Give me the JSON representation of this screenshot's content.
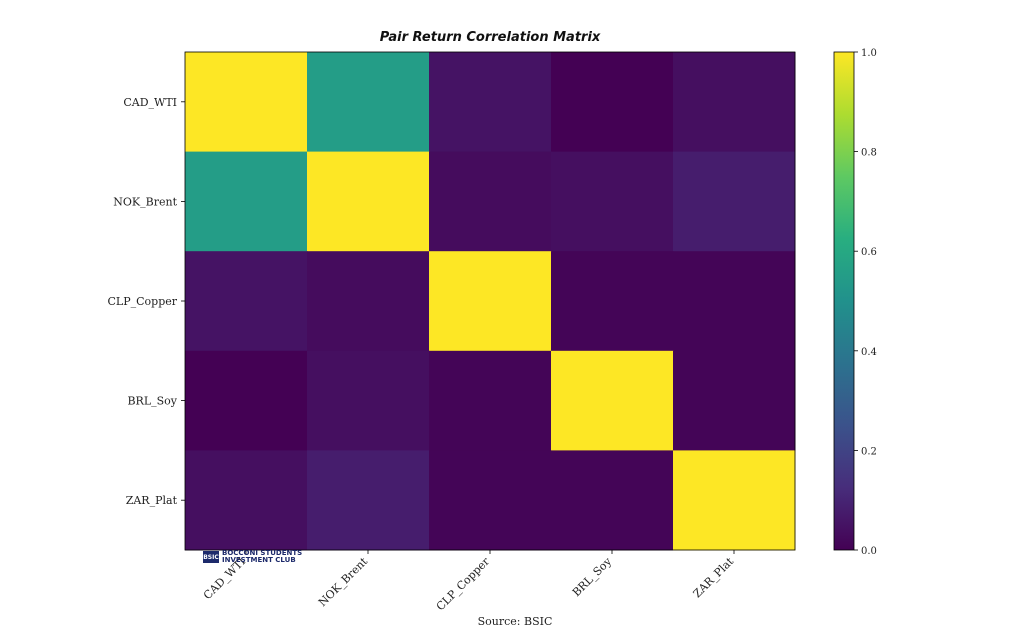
{
  "chart_data": {
    "type": "heatmap",
    "title": "Pair Return Correlation Matrix",
    "xlabel": "",
    "ylabel": "",
    "rows": [
      "CAD_WTI",
      "NOK_Brent",
      "CLP_Copper",
      "BRL_Soy",
      "ZAR_Plat"
    ],
    "columns": [
      "CAD_WTI",
      "NOK_Brent",
      "CLP_Copper",
      "BRL_Soy",
      "ZAR_Plat"
    ],
    "values": [
      [
        1.0,
        0.55,
        0.05,
        0.0,
        0.04
      ],
      [
        0.55,
        1.0,
        0.03,
        0.04,
        0.08
      ],
      [
        0.05,
        0.03,
        1.0,
        0.01,
        0.01
      ],
      [
        0.0,
        0.04,
        0.01,
        1.0,
        0.01
      ],
      [
        0.04,
        0.08,
        0.01,
        0.01,
        1.0
      ]
    ],
    "colorbar": {
      "range": [
        0.0,
        1.0
      ],
      "ticks": [
        "0.0",
        "0.2",
        "0.4",
        "0.6",
        "0.8",
        "1.0"
      ],
      "colormap": "viridis"
    },
    "grid": false
  },
  "footer": {
    "source": "Source: BSIC",
    "logo_mark": "BSIC",
    "logo_line1": "BOCCONI STUDENTS",
    "logo_line2": "INVESTMENT CLUB"
  }
}
